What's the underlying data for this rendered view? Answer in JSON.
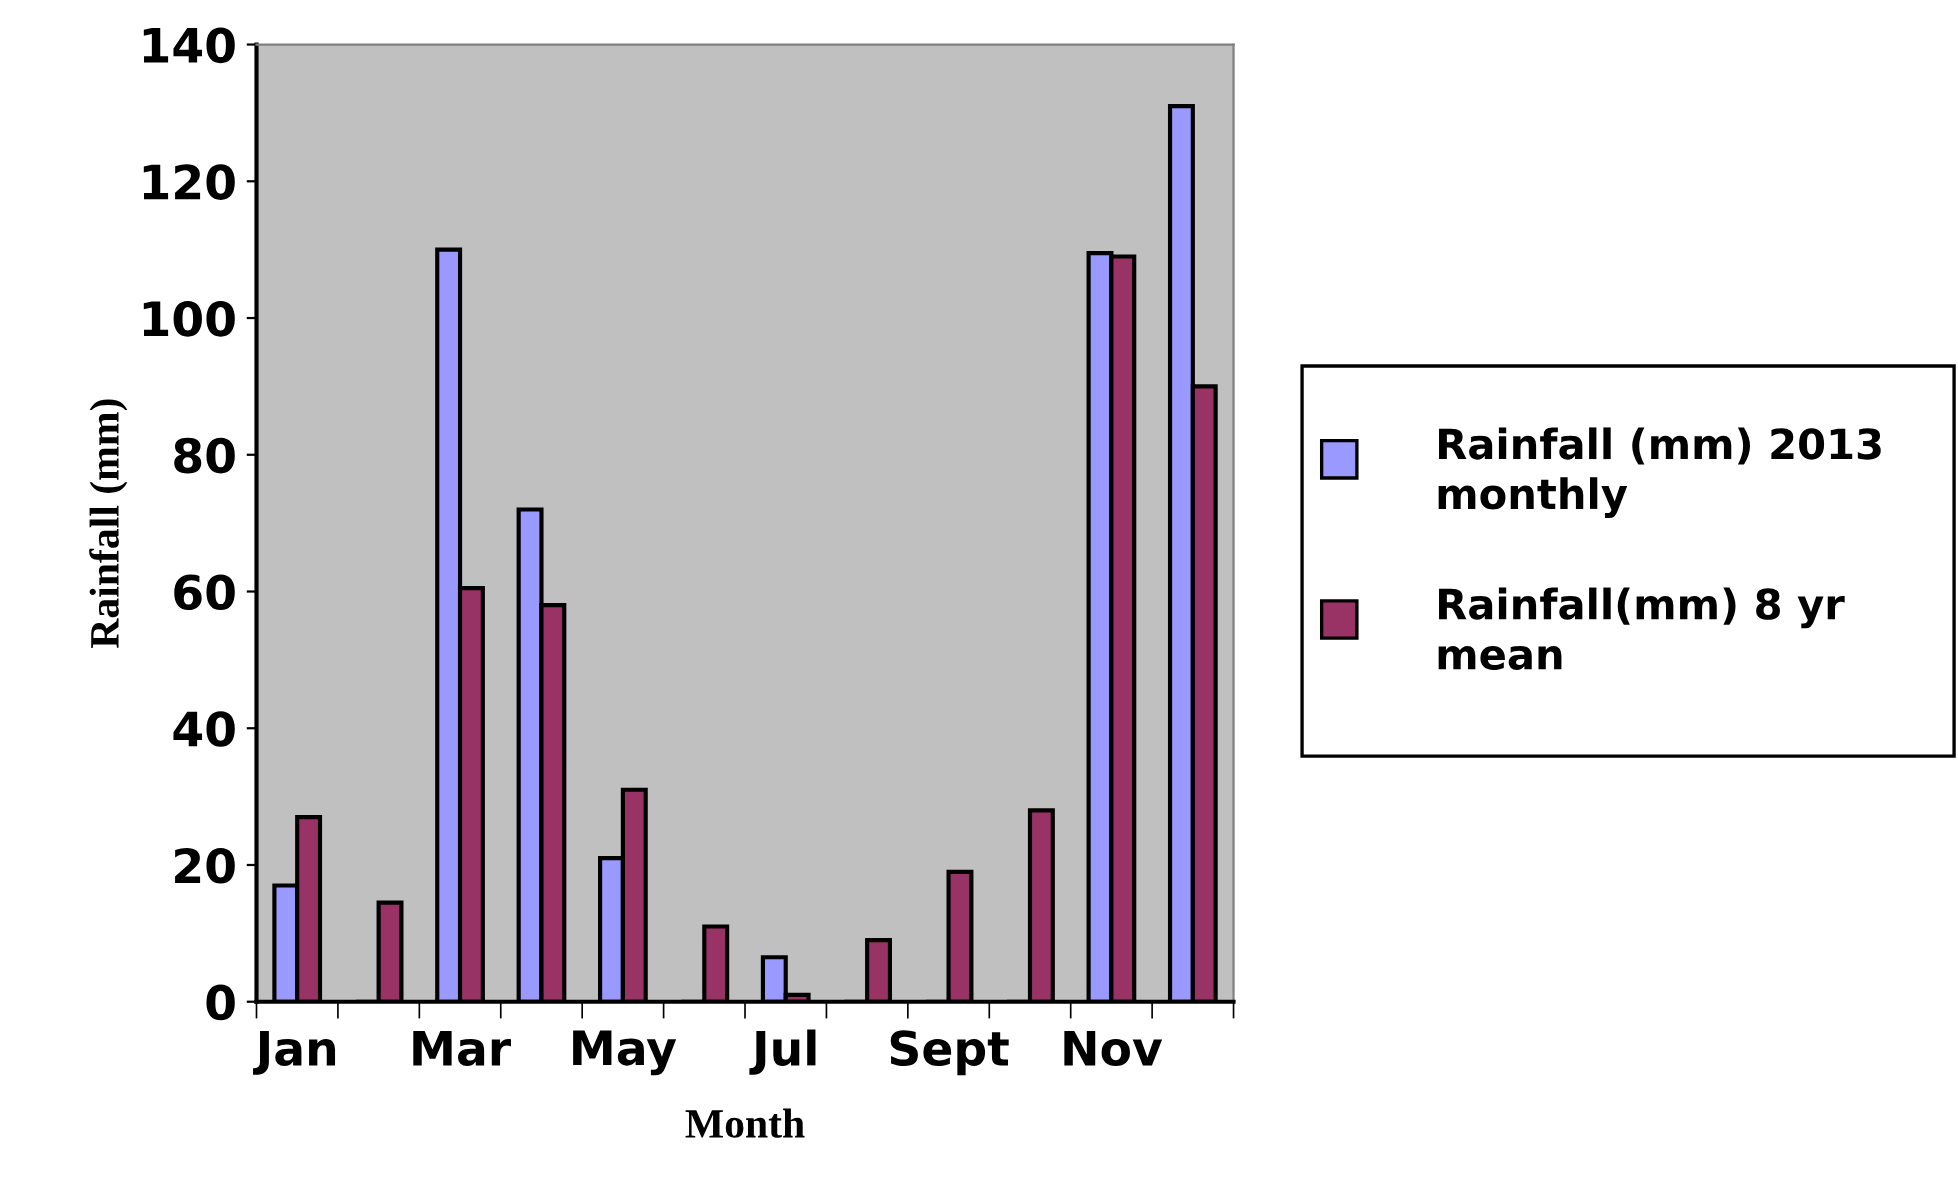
{
  "chart_data": {
    "type": "bar",
    "xlabel": "Month",
    "ylabel": "Rainfall (mm)",
    "categories": [
      "Jan",
      null,
      "Mar",
      null,
      "May",
      null,
      "Jul",
      null,
      "Sept",
      null,
      "Nov",
      null
    ],
    "series": [
      {
        "name": "Rainfall (mm) 2013 monthly",
        "color": "#9999ff",
        "values": [
          17,
          0,
          110,
          72,
          21,
          0,
          6.5,
          0,
          0,
          0,
          109.5,
          131
        ]
      },
      {
        "name": "Rainfall(mm) 8 yr mean",
        "color": "#993366",
        "values": [
          27,
          14.5,
          60.5,
          58,
          31,
          11,
          1,
          9,
          19,
          28,
          109,
          90
        ]
      }
    ],
    "ylim": [
      0,
      140
    ],
    "yticks": [
      0,
      20,
      40,
      60,
      80,
      100,
      120,
      140
    ],
    "grid": false,
    "legend": "right"
  }
}
